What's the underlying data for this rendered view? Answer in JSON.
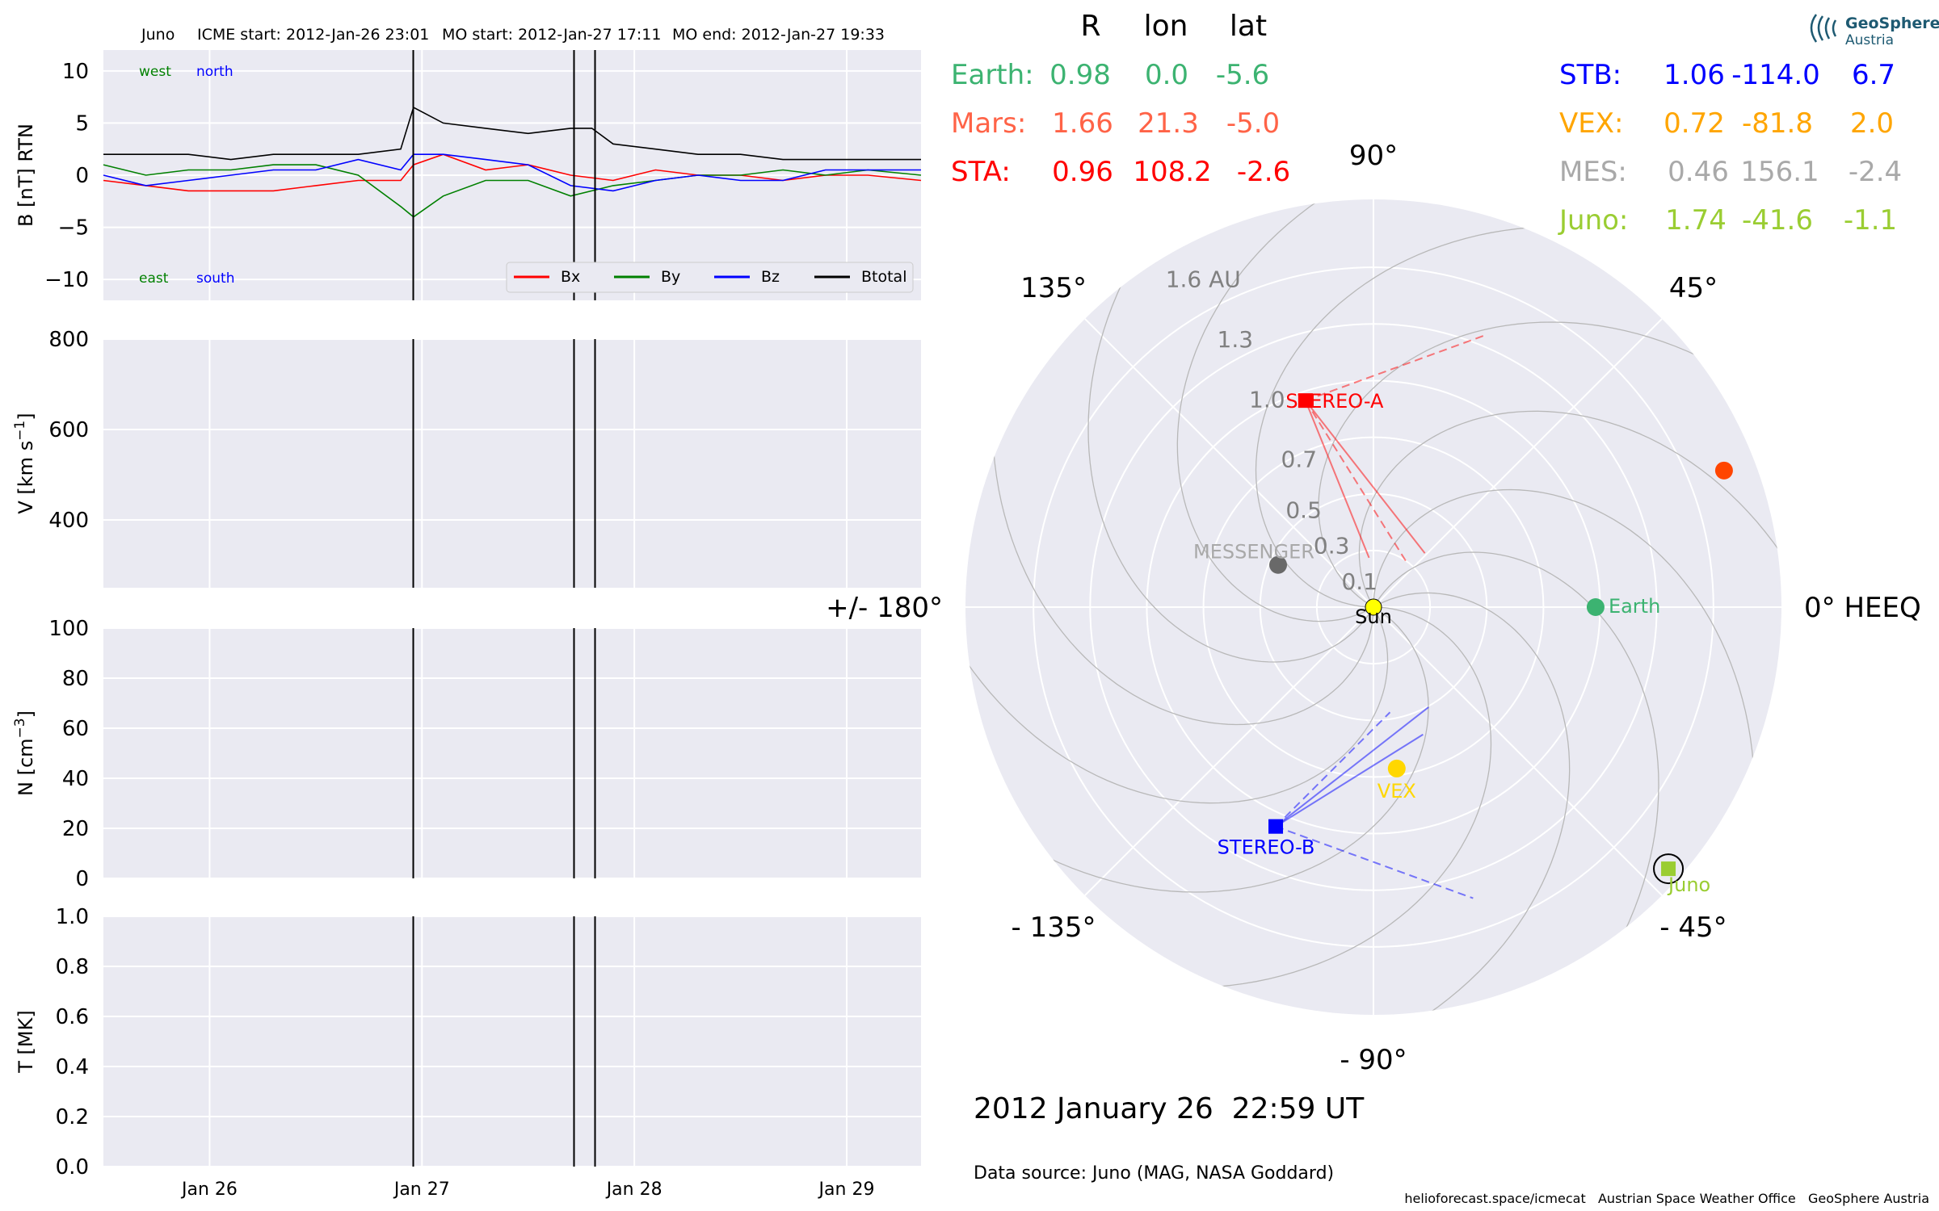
{
  "header": {
    "spacecraft": "Juno",
    "icme_start": "ICME start: 2012-Jan-26 23:01",
    "mo_start": "MO start: 2012-Jan-27 17:11",
    "mo_end": "MO end: 2012-Jan-27 19:33"
  },
  "colors": {
    "bx": "#ff0000",
    "by": "#008000",
    "bz": "#0000ff",
    "btotal": "#000000",
    "earth": "#3cb371",
    "mars": "#ff6347",
    "sta": "#ff0000",
    "stb": "#0000ff",
    "vex": "#ffa500",
    "mes": "#a9a9a9",
    "juno": "#9acd32",
    "panel_bg": "#eaeaf2"
  },
  "chart_data": [
    {
      "type": "line",
      "panel": "magnetic-field",
      "ylabel": "B [nT] RTN",
      "ylim": [
        -12,
        12
      ],
      "yticks": [
        -10,
        -5,
        0,
        5,
        10
      ],
      "xlim": [
        0,
        3.85
      ],
      "x_unit": "days since 2012-Jan-25 12:00 (Jan 26 at 0.5, Jan 27 at 1.5, Jan 28 at 2.5, Jan 29 at 3.5)",
      "xticks": [
        {
          "x": 0.5,
          "label": "Jan 26"
        },
        {
          "x": 1.5,
          "label": "Jan 27"
        },
        {
          "x": 2.5,
          "label": "Jan 28"
        },
        {
          "x": 3.5,
          "label": "Jan 29"
        }
      ],
      "event_lines_x": [
        1.459,
        2.216,
        2.315
      ],
      "annotations": {
        "top_left_1": "west",
        "top_left_2": "north",
        "bottom_left_1": "east",
        "bottom_left_2": "south"
      },
      "legend": {
        "placement": "lower-right",
        "entries": [
          "Bx",
          "By",
          "Bz",
          "Btotal"
        ]
      },
      "series": [
        {
          "name": "Bx",
          "x": [
            0,
            0.2,
            0.4,
            0.6,
            0.8,
            1.0,
            1.2,
            1.4,
            1.46,
            1.6,
            1.8,
            2.0,
            2.2,
            2.4,
            2.6,
            2.8,
            3.0,
            3.2,
            3.4,
            3.6,
            3.85
          ],
          "y": [
            -0.5,
            -1,
            -1.5,
            -1.5,
            -1.5,
            -1,
            -0.5,
            -0.5,
            1,
            2,
            0.5,
            1,
            0,
            -0.5,
            0.5,
            0,
            0,
            -0.5,
            0,
            0,
            -0.5
          ]
        },
        {
          "name": "By",
          "x": [
            0,
            0.2,
            0.4,
            0.6,
            0.8,
            1.0,
            1.2,
            1.4,
            1.46,
            1.6,
            1.8,
            2.0,
            2.2,
            2.4,
            2.6,
            2.8,
            3.0,
            3.2,
            3.4,
            3.6,
            3.85
          ],
          "y": [
            1,
            0,
            0.5,
            0.5,
            1,
            1,
            0,
            -3,
            -4,
            -2,
            -0.5,
            -0.5,
            -2,
            -1,
            -0.5,
            0,
            0,
            0.5,
            0,
            0.5,
            0
          ]
        },
        {
          "name": "Bz",
          "x": [
            0,
            0.2,
            0.4,
            0.6,
            0.8,
            1.0,
            1.2,
            1.4,
            1.46,
            1.6,
            1.8,
            2.0,
            2.2,
            2.4,
            2.6,
            2.8,
            3.0,
            3.2,
            3.4,
            3.6,
            3.85
          ],
          "y": [
            0,
            -1,
            -0.5,
            0,
            0.5,
            0.5,
            1.5,
            0.5,
            2,
            2,
            1.5,
            1,
            -1,
            -1.5,
            -0.5,
            0,
            -0.5,
            -0.5,
            0.5,
            0.5,
            0.5
          ]
        },
        {
          "name": "Btotal",
          "x": [
            0,
            0.2,
            0.4,
            0.6,
            0.8,
            1.0,
            1.2,
            1.4,
            1.46,
            1.6,
            1.8,
            2.0,
            2.2,
            2.3,
            2.4,
            2.6,
            2.8,
            3.0,
            3.2,
            3.4,
            3.6,
            3.85
          ],
          "y": [
            2,
            2,
            2,
            1.5,
            2,
            2,
            2,
            2.5,
            6.5,
            5,
            4.5,
            4,
            4.5,
            4.5,
            3,
            2.5,
            2,
            2,
            1.5,
            1.5,
            1.5,
            1.5
          ]
        }
      ]
    },
    {
      "type": "line",
      "panel": "velocity",
      "ylabel": "V [km s$^{-1}$]",
      "ylim": [
        250,
        800
      ],
      "yticks": [
        400,
        600,
        800
      ],
      "series": []
    },
    {
      "type": "line",
      "panel": "density",
      "ylabel": "N [cm$^{-3}$]",
      "ylim": [
        0,
        100
      ],
      "yticks": [
        0,
        20,
        40,
        60,
        80,
        100
      ],
      "series": []
    },
    {
      "type": "line",
      "panel": "temperature",
      "ylabel": "T [MK]",
      "ylim": [
        0,
        1
      ],
      "yticks": [
        0.0,
        0.2,
        0.4,
        0.6,
        0.8,
        1.0
      ],
      "series": []
    },
    {
      "type": "scatter",
      "panel": "polar-positions",
      "rlim": [
        0,
        1.8
      ],
      "r_tick_labels": [
        {
          "r": 0.1,
          "label": "0.1"
        },
        {
          "r": 0.3,
          "label": "0.3"
        },
        {
          "r": 0.5,
          "label": "0.5"
        },
        {
          "r": 0.7,
          "label": "0.7"
        },
        {
          "r": 1.0,
          "label": "1.0"
        },
        {
          "r": 1.3,
          "label": "1.3"
        },
        {
          "r": 1.6,
          "label": "1.6 AU"
        }
      ],
      "angle_labels": [
        {
          "deg": 0,
          "label": "0° HEEQ"
        },
        {
          "deg": 45,
          "label": "45°"
        },
        {
          "deg": 90,
          "label": "90°"
        },
        {
          "deg": 135,
          "label": "135°"
        },
        {
          "deg": 180,
          "label": "+/- 180°"
        },
        {
          "deg": -135,
          "label": "- 135°"
        },
        {
          "deg": -90,
          "label": "- 90°"
        },
        {
          "deg": -45,
          "label": "- 45°"
        }
      ],
      "bodies": [
        {
          "name": "Sun",
          "r": 0,
          "lon": 0,
          "label": "Sun",
          "color": "#ffff00",
          "marker": "circle"
        },
        {
          "name": "Earth",
          "r": 0.98,
          "lon": 0.0,
          "label": "Earth",
          "color": "#3cb371",
          "marker": "circle"
        },
        {
          "name": "Mars",
          "r": 1.66,
          "lon": 21.3,
          "label": "",
          "color": "#ff4500",
          "marker": "circle"
        },
        {
          "name": "STA",
          "r": 0.96,
          "lon": 108.2,
          "label": "STEREO-A",
          "color": "#ff0000",
          "marker": "square"
        },
        {
          "name": "STB",
          "r": 1.06,
          "lon": -114.0,
          "label": "STEREO-B",
          "color": "#0000ff",
          "marker": "square"
        },
        {
          "name": "VEX",
          "r": 0.72,
          "lon": -81.8,
          "label": "VEX",
          "color": "#ffd700",
          "marker": "circle"
        },
        {
          "name": "MES",
          "r": 0.46,
          "lon": 156.1,
          "label": "MESSENGER",
          "color": "#696969",
          "marker": "circle"
        },
        {
          "name": "Juno",
          "r": 1.74,
          "lon": -41.6,
          "label": "Juno",
          "color": "#9acd32",
          "marker": "square"
        }
      ]
    }
  ],
  "positions_table": {
    "headers": [
      "R",
      "lon",
      "lat"
    ],
    "left": [
      {
        "name": "Earth:",
        "R": "0.98",
        "lon": "0.0",
        "lat": "-5.6"
      },
      {
        "name": "Mars:",
        "R": "1.66",
        "lon": "21.3",
        "lat": "-5.0"
      },
      {
        "name": "STA:",
        "R": "0.96",
        "lon": "108.2",
        "lat": "-2.6"
      }
    ],
    "right": [
      {
        "name": "STB:",
        "R": "1.06",
        "lon": "-114.0",
        "lat": "6.7"
      },
      {
        "name": "VEX:",
        "R": "0.72",
        "lon": "-81.8",
        "lat": "2.0"
      },
      {
        "name": "MES:",
        "R": "0.46",
        "lon": "156.1",
        "lat": "-2.4"
      },
      {
        "name": "Juno:",
        "R": "1.74",
        "lon": "-41.6",
        "lat": "-1.1"
      }
    ]
  },
  "datetime": "2012 January 26  22:59 UT",
  "data_source": "Data source: Juno (MAG, NASA Goddard)",
  "footer": "helioforecast.space/icmecat   Austrian Space Weather Office   GeoSphere Austria",
  "logo": {
    "line1": "GeoSphere",
    "line2": "Austria"
  }
}
